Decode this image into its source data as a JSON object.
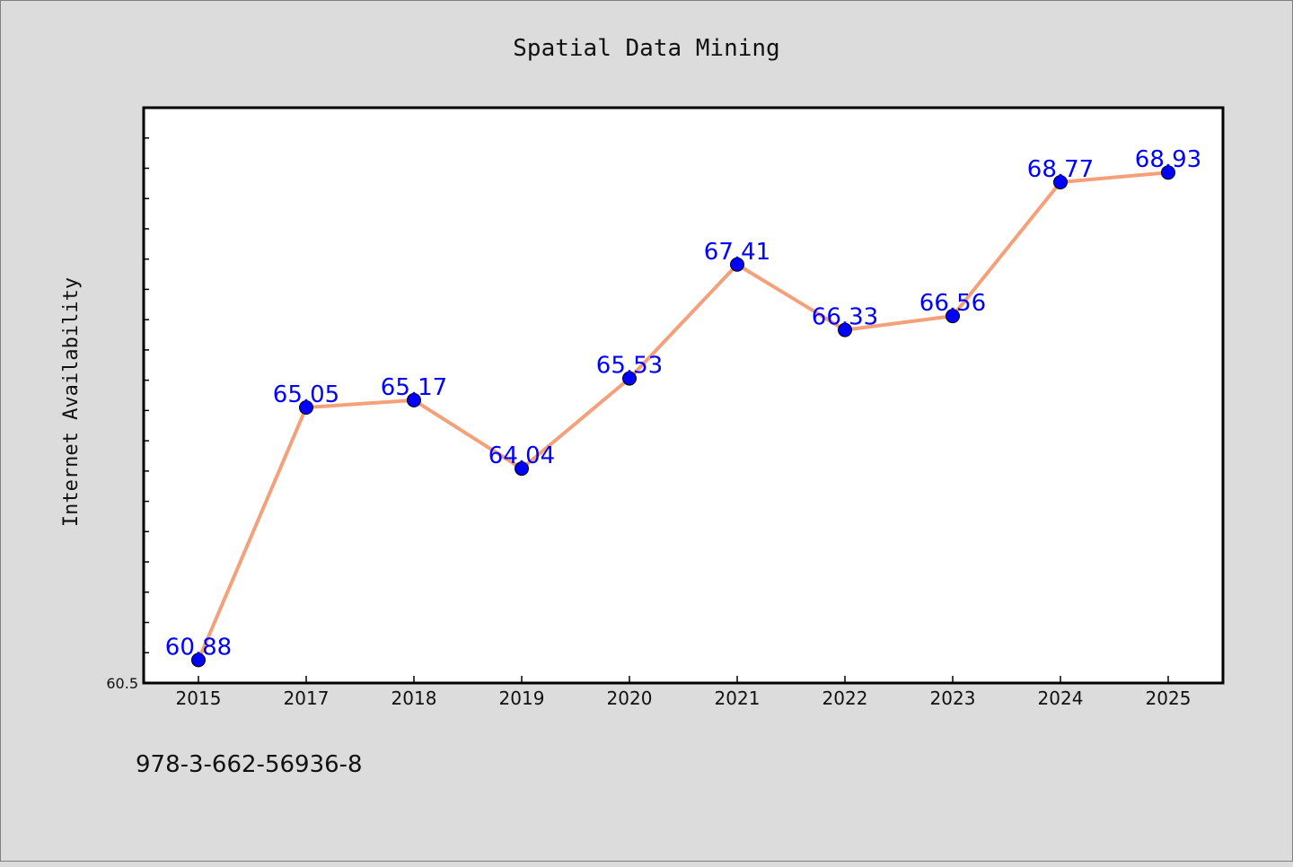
{
  "chart_data": {
    "type": "line",
    "title": "Spatial Data Mining",
    "xlabel": "",
    "ylabel": "Internet Availability",
    "categories": [
      "2015",
      "2017",
      "2018",
      "2019",
      "2020",
      "2021",
      "2022",
      "2023",
      "2024",
      "2025"
    ],
    "series": [
      {
        "values": [
          60.88,
          65.05,
          65.17,
          64.04,
          65.53,
          67.41,
          66.33,
          66.56,
          68.77,
          68.93
        ],
        "line_color": "#f4a07a",
        "marker_color": "#0000ff",
        "label_color": "#0000ff"
      }
    ],
    "ylim": [
      60.5,
      70
    ],
    "yticks_labeled": [
      "60.5"
    ],
    "grid": false,
    "legend": "none"
  },
  "caption": "978-3-662-56936-8",
  "colors": {
    "background": "#dcdcdc",
    "plot_background": "#ffffff",
    "axis": "#000000"
  }
}
